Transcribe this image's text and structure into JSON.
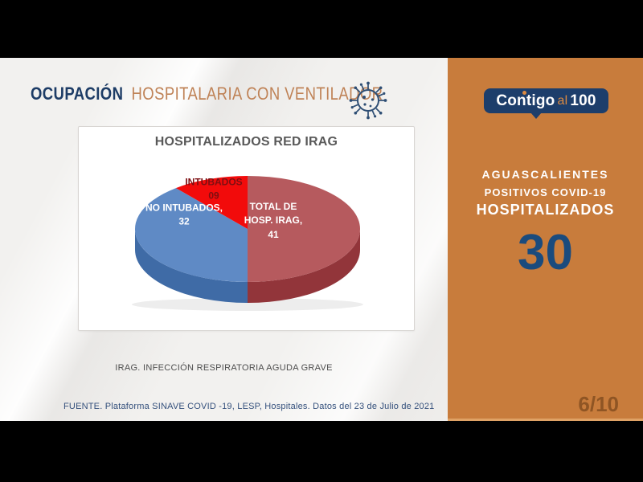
{
  "header": {
    "title_primary": "OCUPACIÓN",
    "title_secondary": "HOSPITALARIA CON VENTILADOR"
  },
  "chart_data": {
    "type": "pie",
    "style": "3d",
    "title": "HOSPITALIZADOS RED IRAG",
    "categories": [
      "TOTAL DE HOSP. IRAG",
      "NO INTUBADOS",
      "INTUBADOS"
    ],
    "values": [
      41,
      32,
      9
    ],
    "display_values": [
      "41",
      "32",
      "09"
    ],
    "colors": [
      "#b65a5e",
      "#5f8ac5",
      "#f20b0b"
    ],
    "side_colors": [
      "#92353a",
      "#3f6ba6",
      "#a80808"
    ],
    "label_text_colors": [
      "#ffffff",
      "#ffffff",
      "#7d0f12"
    ],
    "slice_labels": [
      [
        "TOTAL DE",
        "HOSP. IRAG,",
        "41"
      ],
      [
        "NO INTUBADOS,",
        "32"
      ],
      [
        "INTUBADOS",
        "09"
      ]
    ],
    "legend": "none",
    "start_angle": "top",
    "direction": "clockwise"
  },
  "notes": {
    "abbreviation": "IRAG. INFECCIÓN RESPIRATORIA AGUDA GRAVE",
    "source": "FUENTE. Plataforma SINAVE COVID -19, LESP, Hospitales.  Datos del 23 de Julio de 2021"
  },
  "sidebar": {
    "logo": {
      "word1": "Contigo",
      "word2": "al",
      "word3": "100"
    },
    "state": "AGUASCALIENTES",
    "subtitle": "POSITIVOS COVID-19",
    "category": "HOSPITALIZADOS",
    "count": "30",
    "page_indicator": "6/10"
  },
  "colors": {
    "sidebar_orange": "#c87c3c",
    "logo_navy": "#1d3e6b",
    "title_navy": "#1d3c66",
    "title_orange": "#bf8256",
    "count_navy": "#1a4b7d",
    "letterbox": "#000000"
  }
}
